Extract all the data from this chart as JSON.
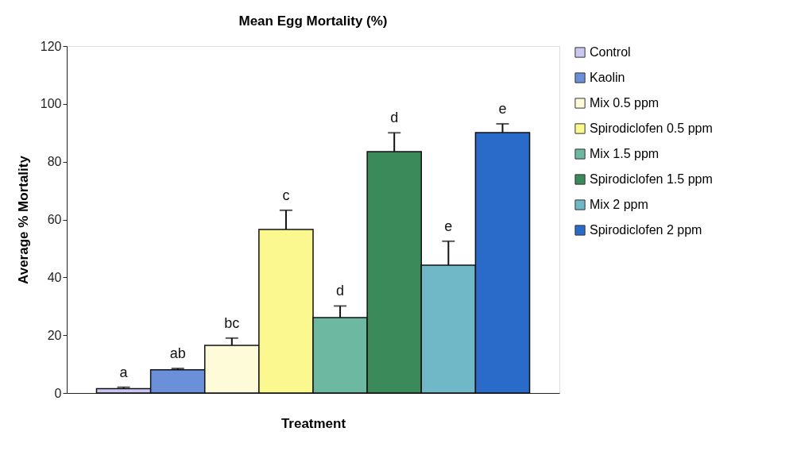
{
  "chart_data": {
    "type": "bar",
    "title": "Mean Egg Mortality (%)",
    "xlabel": "Treatment",
    "ylabel": "Average % Mortality",
    "categories": [
      null
    ],
    "series": [
      {
        "name": "Control",
        "color": "#c8c8f0",
        "values": [
          1.5
        ],
        "errors": [
          0.5
        ]
      },
      {
        "name": "Kaolin",
        "color": "#6b8fd8",
        "values": [
          8
        ],
        "errors": [
          0.5
        ]
      },
      {
        "name": "Mix 0.5 ppm",
        "color": "#fefcd8",
        "values": [
          16.5
        ],
        "errors": [
          2.5
        ]
      },
      {
        "name": "Spirodiclofen 0.5 ppm",
        "color": "#fcf890",
        "values": [
          56.6
        ],
        "errors": [
          6.6
        ]
      },
      {
        "name": "Mix 1.5 ppm",
        "color": "#6cb8a0",
        "values": [
          26.1
        ],
        "errors": [
          4
        ]
      },
      {
        "name": "Spirodiclofen 1.5 ppm",
        "color": "#3a8a5a",
        "values": [
          83.5
        ],
        "errors": [
          6.5
        ]
      },
      {
        "name": "Mix 2 ppm",
        "color": "#70b8c8",
        "values": [
          44.2
        ],
        "errors": [
          8.3
        ]
      },
      {
        "name": "Spirodiclofen 2 ppm",
        "color": "#2a6ac8",
        "values": [
          90.1
        ],
        "errors": [
          3
        ]
      }
    ],
    "annotations": [
      "a",
      "ab",
      "bc",
      "c",
      "d",
      "d",
      "e",
      "e"
    ],
    "ylim": [
      0,
      120
    ],
    "yticks": [
      0,
      20,
      40,
      60,
      80,
      100,
      120
    ],
    "grid": false,
    "legend": "right",
    "tick_labels": "y"
  }
}
